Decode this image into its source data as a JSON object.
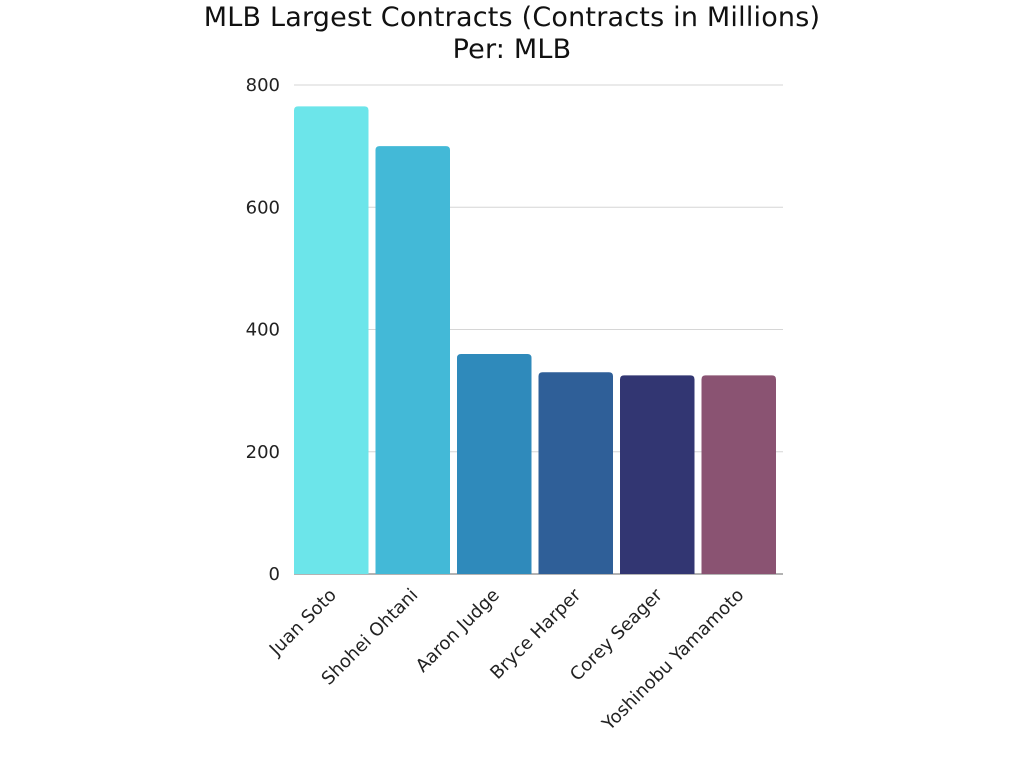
{
  "chart_data": {
    "type": "bar",
    "title": "MLB Largest Contracts (Contracts in Millions)",
    "subtitle": "Per: MLB",
    "xlabel": "",
    "ylabel": "",
    "ylim": [
      0,
      800
    ],
    "yticks": [
      0,
      200,
      400,
      600,
      800
    ],
    "grid": true,
    "categories": [
      "Juan Soto",
      "Shohei Ohtani",
      "Aaron Judge",
      "Bryce Harper",
      "Corey Seager",
      "Yoshinobu Yamamoto"
    ],
    "values": [
      765,
      700,
      360,
      330,
      325,
      325
    ],
    "colors": [
      "#6ce5ea",
      "#43b9d7",
      "#2f8abb",
      "#2f5f98",
      "#323672",
      "#8a5372"
    ]
  }
}
